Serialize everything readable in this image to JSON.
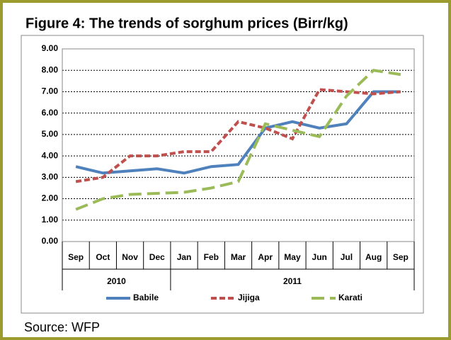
{
  "chart_data": {
    "type": "line",
    "title": "Figure 4: The trends of sorghum prices (Birr/kg)",
    "source": "Source: WFP",
    "categories": [
      "Sep",
      "Oct",
      "Nov",
      "Dec",
      "Jan",
      "Feb",
      "Mar",
      "Apr",
      "May",
      "Jun",
      "Jul",
      "Aug",
      "Sep"
    ],
    "category_groups": [
      {
        "label": "2010",
        "count": 4
      },
      {
        "label": "2011",
        "count": 9
      }
    ],
    "series": [
      {
        "name": "Babile",
        "color": "#4f81bd",
        "dash": "solid",
        "values": [
          3.5,
          3.2,
          3.3,
          3.4,
          3.2,
          3.5,
          3.6,
          5.3,
          5.6,
          5.3,
          5.5,
          7.0,
          7.0
        ]
      },
      {
        "name": "Jijiga",
        "color": "#c0504d",
        "dash": "dashed",
        "values": [
          2.8,
          3.0,
          4.0,
          4.0,
          4.2,
          4.2,
          5.6,
          5.3,
          4.8,
          7.1,
          7.0,
          6.9,
          7.0
        ]
      },
      {
        "name": "Karati",
        "color": "#9bbb59",
        "dash": "long-dashed",
        "values": [
          1.5,
          2.0,
          2.2,
          2.25,
          2.3,
          2.5,
          2.8,
          5.5,
          5.2,
          4.9,
          6.8,
          8.0,
          7.8
        ]
      }
    ],
    "ylim": [
      0,
      9
    ],
    "yticks": [
      {
        "value": 0,
        "label": "0.00"
      },
      {
        "value": 1,
        "label": "1.00"
      },
      {
        "value": 2,
        "label": "2.00"
      },
      {
        "value": 3,
        "label": "3.00"
      },
      {
        "value": 4,
        "label": "4.00"
      },
      {
        "value": 5,
        "label": "5.00"
      },
      {
        "value": 6,
        "label": "6.00"
      },
      {
        "value": 7,
        "label": "7.00"
      },
      {
        "value": 8,
        "label": "8.00"
      },
      {
        "value": 9,
        "label": "9.00"
      }
    ],
    "grid": true,
    "legend": "bottom"
  }
}
